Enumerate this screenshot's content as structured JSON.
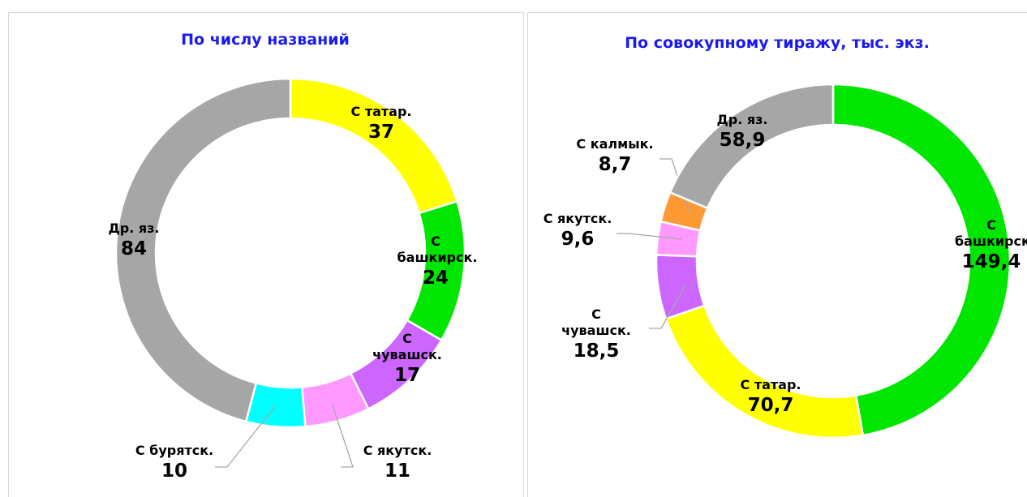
{
  "chart_data": [
    {
      "type": "donut",
      "title": "По числу названий",
      "categories": [
        "С татар.",
        "С башкирск.",
        "С чувашск.",
        "С якутск.",
        "С бурятск.",
        "Др. яз."
      ],
      "values": [
        37,
        24,
        17,
        11,
        10,
        84
      ],
      "colors": [
        "#ffff00",
        "#00e600",
        "#cc66ff",
        "#ff99ff",
        "#00ffff",
        "#a6a6a6"
      ]
    },
    {
      "type": "donut",
      "title": "По совокупному тиражу, тыс. экз.",
      "categories": [
        "С башкирск.",
        "С татар.",
        "С чувашск.",
        "С якутск.",
        "С калмык.",
        "Др. яз."
      ],
      "values": [
        149.4,
        70.7,
        18.5,
        9.6,
        8.7,
        58.9
      ],
      "value_labels": [
        "149,4",
        "70,7",
        "18,5",
        "9,6",
        "8,7",
        "58,9"
      ],
      "colors": [
        "#00e600",
        "#ffff00",
        "#cc66ff",
        "#ff99ff",
        "#ff9933",
        "#a6a6a6"
      ]
    }
  ]
}
